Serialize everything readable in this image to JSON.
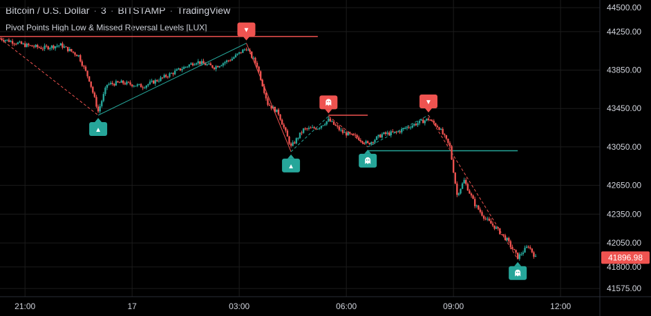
{
  "header": {
    "symbol": "Bitcoin / U.S. Dollar",
    "interval": "3",
    "exchange": "BITSTAMP",
    "platform": "TradingView",
    "separator": "·",
    "indicator": "Pivot Points High Low & Missed Reversal Levels [LUX]"
  },
  "colors": {
    "background": "#000000",
    "up": "#26a69a",
    "down": "#ef5350",
    "axis_text": "#d1d4dc",
    "grid": "#1c1c1c"
  },
  "chart_data": {
    "type": "candlestick",
    "x_tick_labels": [
      "21:00",
      "17",
      "03:00",
      "06:00",
      "09:00",
      "12:00"
    ],
    "x_tick_times": [
      0,
      3,
      6,
      9,
      12,
      15
    ],
    "x_unit": "hours since 21:00 (16th)",
    "xlim": [
      -0.7,
      16.1
    ],
    "y_tick_labels": [
      "44500.00",
      "44250.00",
      "43850.00",
      "43450.00",
      "43050.00",
      "42650.00",
      "42350.00",
      "42050.00",
      "41800.00",
      "41575.00"
    ],
    "y_ticks": [
      44500,
      44250,
      43850,
      43450,
      43050,
      42650,
      42350,
      42050,
      41800,
      41575
    ],
    "ylim": [
      41490,
      44580
    ],
    "last_price": "41896.98",
    "last_price_value": 41897,
    "pivot_points": [
      {
        "kind": "high",
        "icon": "▼",
        "t": 6.2,
        "price": 44130
      },
      {
        "kind": "low",
        "icon": "▲",
        "t": 2.05,
        "price": 43380
      },
      {
        "kind": "low",
        "icon": "▲",
        "t": 7.45,
        "price": 43000
      },
      {
        "kind": "missed-high",
        "icon": "ghost",
        "t": 8.5,
        "price": 43370
      },
      {
        "kind": "missed-low",
        "icon": "ghost",
        "t": 9.6,
        "price": 43050
      },
      {
        "kind": "high",
        "icon": "▼",
        "t": 11.3,
        "price": 43380
      },
      {
        "kind": "missed-low",
        "icon": "ghost",
        "t": 13.8,
        "price": 41880
      }
    ],
    "levels": [
      {
        "color": "#ef5350",
        "t_start": -0.7,
        "t_end": 8.2,
        "price": 44200
      },
      {
        "color": "#ef5350",
        "t_start": 8.5,
        "t_end": 9.6,
        "price": 43380
      },
      {
        "color": "#26a69a",
        "t_start": 9.6,
        "t_end": 13.8,
        "price": 43010
      }
    ],
    "zigzag": [
      {
        "from_t": -0.7,
        "from_p": 44180,
        "to_t": 2.05,
        "to_p": 43380,
        "color": "#ef5350",
        "dashed": true
      },
      {
        "from_t": 2.05,
        "from_p": 43380,
        "to_t": 6.2,
        "to_p": 44130,
        "color": "#26a69a",
        "dashed": false
      },
      {
        "from_t": 6.2,
        "from_p": 44130,
        "to_t": 7.45,
        "to_p": 43000,
        "color": "#ef5350",
        "dashed": false
      },
      {
        "from_t": 7.45,
        "from_p": 43000,
        "to_t": 8.5,
        "to_p": 43370,
        "color": "#26a69a",
        "dashed": true
      },
      {
        "from_t": 8.5,
        "from_p": 43370,
        "to_t": 9.6,
        "to_p": 43050,
        "color": "#ef5350",
        "dashed": true
      },
      {
        "from_t": 9.6,
        "from_p": 43050,
        "to_t": 11.3,
        "to_p": 43380,
        "color": "#26a69a",
        "dashed": true
      },
      {
        "from_t": 11.3,
        "from_p": 43380,
        "to_t": 13.8,
        "to_p": 41880,
        "color": "#ef5350",
        "dashed": true
      }
    ],
    "price_path": [
      [
        -0.7,
        44180
      ],
      [
        0.0,
        44110
      ],
      [
        0.5,
        44080
      ],
      [
        1.0,
        44110
      ],
      [
        1.5,
        44000
      ],
      [
        1.8,
        43750
      ],
      [
        2.05,
        43420
      ],
      [
        2.3,
        43700
      ],
      [
        2.7,
        43720
      ],
      [
        3.3,
        43680
      ],
      [
        3.8,
        43760
      ],
      [
        4.3,
        43850
      ],
      [
        4.8,
        43940
      ],
      [
        5.3,
        43880
      ],
      [
        5.8,
        43970
      ],
      [
        6.2,
        44080
      ],
      [
        6.5,
        43900
      ],
      [
        6.8,
        43500
      ],
      [
        7.1,
        43400
      ],
      [
        7.45,
        43050
      ],
      [
        7.8,
        43230
      ],
      [
        8.2,
        43250
      ],
      [
        8.5,
        43330
      ],
      [
        8.9,
        43200
      ],
      [
        9.3,
        43150
      ],
      [
        9.6,
        43080
      ],
      [
        10.0,
        43180
      ],
      [
        10.4,
        43200
      ],
      [
        10.8,
        43270
      ],
      [
        11.3,
        43340
      ],
      [
        11.6,
        43250
      ],
      [
        11.9,
        43050
      ],
      [
        12.1,
        42550
      ],
      [
        12.3,
        42700
      ],
      [
        12.6,
        42450
      ],
      [
        12.9,
        42300
      ],
      [
        13.2,
        42200
      ],
      [
        13.5,
        42080
      ],
      [
        13.8,
        41900
      ],
      [
        14.1,
        42020
      ],
      [
        14.3,
        41897
      ]
    ],
    "candles_per_hour": 20
  }
}
